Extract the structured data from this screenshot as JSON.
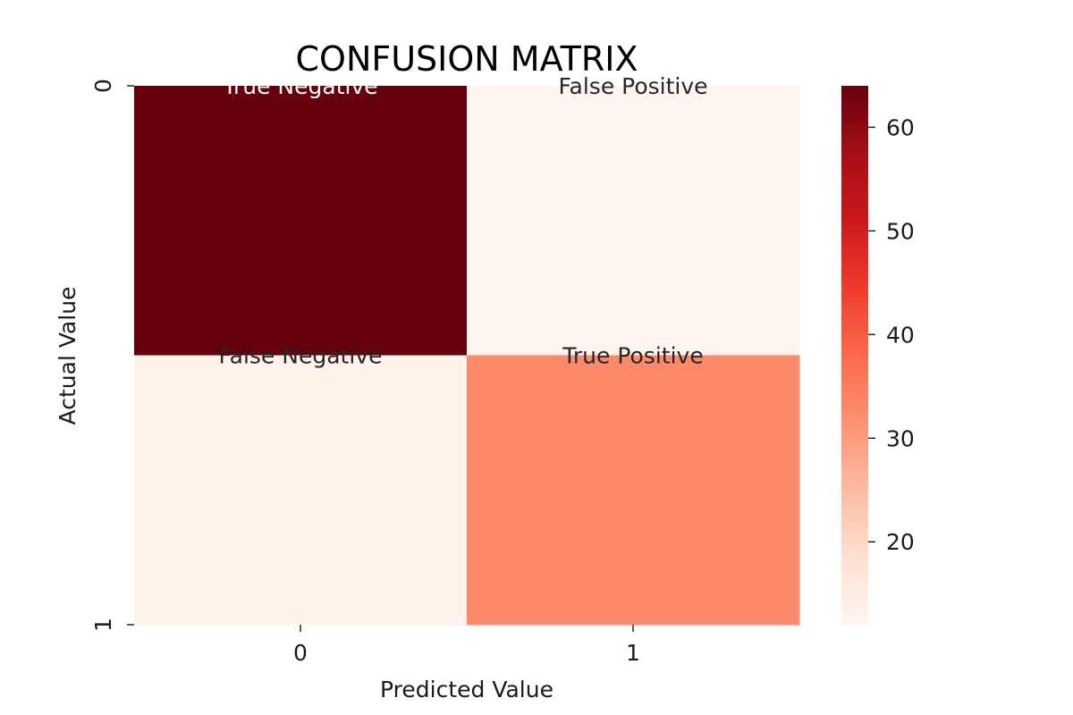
{
  "chart_data": {
    "type": "heatmap",
    "title": "CONFUSION MATRIX",
    "xlabel": "Predicted Value",
    "ylabel": "Actual Value",
    "x_categories": [
      "0",
      "1"
    ],
    "y_categories": [
      "0",
      "1"
    ],
    "values": [
      [
        64,
        12
      ],
      [
        13,
        33
      ]
    ],
    "cell_labels": [
      [
        "True Negative",
        "False Positive"
      ],
      [
        "False Negative",
        "True Positive"
      ]
    ],
    "colormap": "Reds",
    "colorbar": {
      "min": 12,
      "max": 64,
      "ticks": [
        20,
        30,
        40,
        50,
        60
      ]
    },
    "colors": {
      "low": "#fff5f0",
      "high": "#67000d"
    }
  }
}
